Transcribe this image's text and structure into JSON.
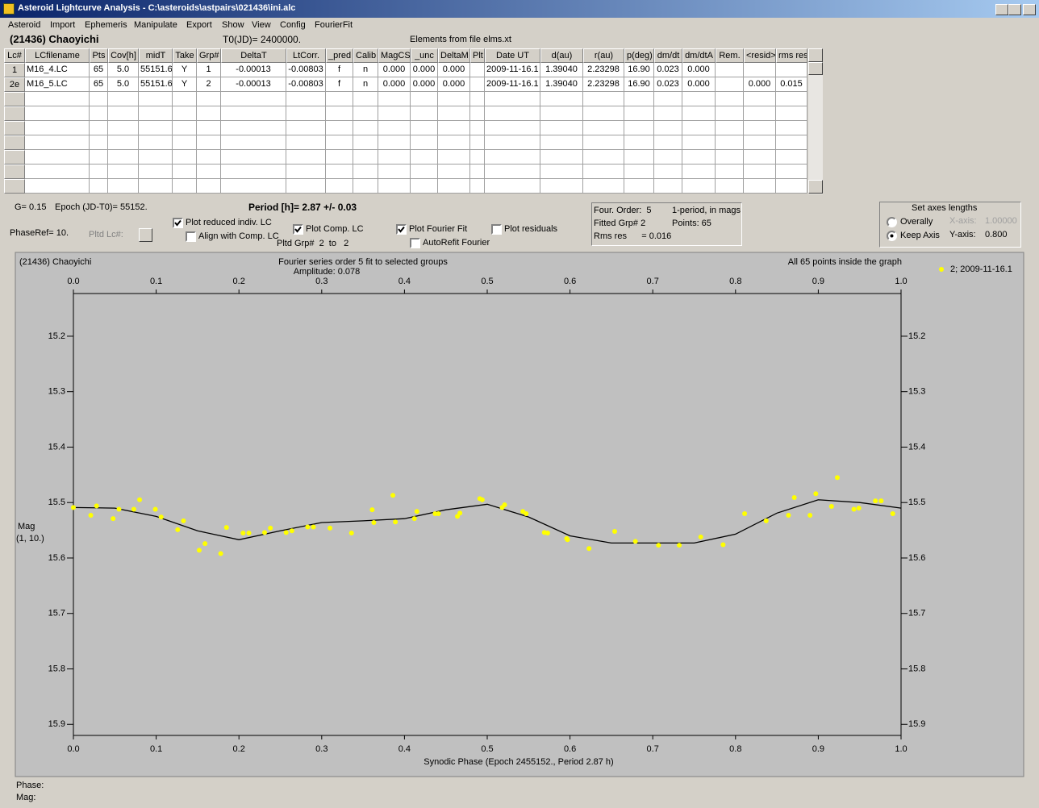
{
  "window": {
    "title": "Asteroid Lightcurve Analysis - C:\\asteroids\\astpairs\\021436\\ini.alc"
  },
  "menu": [
    "Asteroid",
    "Import",
    "Ephemeris",
    "Manipulate",
    "Export",
    "Show",
    "View",
    "Config",
    "FourierFit"
  ],
  "header": {
    "asteroid": "(21436) Chaoyichi",
    "t0": "T0(JD)= 2400000.",
    "elements": "Elements from file elms.xt"
  },
  "table": {
    "columns": [
      "Lc#",
      "LCfilename",
      "Pts",
      "Cov[h]",
      "midT",
      "Take",
      "Grp#",
      "DeltaT",
      "LtCorr.",
      "_pred",
      "Calib",
      "MagCS",
      "_unc",
      "DeltaM",
      "Plt",
      "Date UT",
      "d(au)",
      "r(au)",
      "p(deg)",
      "dm/dt",
      "dm/dtA",
      "Rem.",
      "<resid>",
      "rms res"
    ],
    "rows": [
      [
        "1",
        "M16_4.LC",
        "65",
        "5.0",
        "55151.6",
        "Y",
        "1",
        "-0.00013",
        "-0.00803",
        "f",
        "n",
        "0.000",
        "0.000",
        "0.000",
        null,
        "2009-11-16.1",
        "1.39040",
        "2.23298",
        "16.90",
        "0.023",
        "0.000",
        null,
        null,
        null
      ],
      [
        "2e",
        "M16_5.LC",
        "65",
        "5.0",
        "55151.6",
        "Y",
        "2",
        "-0.00013",
        "-0.00803",
        "f",
        "n",
        "0.000",
        "0.000",
        "0.000",
        null,
        "2009-11-16.1",
        "1.39040",
        "2.23298",
        "16.90",
        "0.023",
        "0.000",
        null,
        "0.000",
        "0.015"
      ]
    ]
  },
  "controls": {
    "g": "G= 0.15",
    "epoch": "Epoch (JD-T0)= 55152.",
    "period": "Period [h]= 2.87 +/- 0.03",
    "phase_ref": "PhaseRef= 10.",
    "pltd_lc": "Pltd Lc#:",
    "checkboxes": [
      {
        "label": "Plot reduced indiv. LC",
        "checked": true
      },
      {
        "label": "Align with Comp. LC",
        "checked": false
      },
      {
        "label": "Plot Comp. LC",
        "checked": true
      },
      {
        "label": "Plot Fourier Fit",
        "checked": true
      },
      {
        "label": "AutoRefit Fourier",
        "checked": false
      },
      {
        "label": "Plot residuals",
        "checked": false
      }
    ],
    "pltd_grp": "Pltd Grp#  2  to   2",
    "fit_info": [
      "Four. Order:  5",
      "1-period, in mags",
      "Fitted Grp# 2",
      "Points: 65",
      "Rms res      = 0.016"
    ],
    "axes_box": {
      "title": "Set axes lengths",
      "options": [
        {
          "label": "Overally",
          "checked": false
        },
        {
          "label": "Keep Axis",
          "checked": true
        }
      ],
      "x_axis": "X-axis:",
      "x_value": "1.00000",
      "y_axis": "Y-axis:",
      "y_value": "0.800"
    }
  },
  "chart_data": {
    "type": "scatter",
    "title": "Fourier series order 5 fit to selected groups",
    "subtitle": "Amplitude: 0.078",
    "annotations": [
      "(21436) Chaoyichi",
      "All 65 points inside the graph"
    ],
    "x_label": "Synodic Phase (Epoch 2455152., Period 2.87 h)",
    "y_label": "Mag",
    "y_label_note": "(1, 10.)",
    "xlim": [
      0,
      1
    ],
    "ylim": [
      15.123,
      15.92
    ],
    "y_inverted": true,
    "xticks": [
      {
        "value": 0,
        "label": "0.0"
      },
      0.1,
      0.2,
      0.3,
      0.4,
      0.5,
      0.6,
      0.7,
      0.8,
      0.9,
      {
        "value": 1,
        "label": "1.0"
      }
    ],
    "yticks": [
      15.2,
      15.3,
      15.4,
      15.5,
      15.6,
      15.7,
      15.8,
      15.9
    ],
    "series": [
      {
        "name": "2; 2009-11-16.1",
        "color": "#ffff00",
        "x": [
          0.0,
          0.021,
          0.028,
          0.048,
          0.055,
          0.073,
          0.08,
          0.099,
          0.106,
          0.126,
          0.133,
          0.152,
          0.159,
          0.178,
          0.185,
          0.205,
          0.212,
          0.231,
          0.238,
          0.257,
          0.264,
          0.283,
          0.29,
          0.31,
          0.336,
          0.361,
          0.363,
          0.386,
          0.389,
          0.412,
          0.415,
          0.437,
          0.441,
          0.464,
          0.467,
          0.491,
          0.494,
          0.518,
          0.521,
          0.543,
          0.547,
          0.569,
          0.573,
          0.596,
          0.597,
          0.623,
          0.654,
          0.679,
          0.707,
          0.732,
          0.758,
          0.785,
          0.811,
          0.837,
          0.864,
          0.871,
          0.89,
          0.897,
          0.916,
          0.923,
          0.943,
          0.949,
          0.969,
          0.976,
          0.99
        ],
        "values": [
          15.509,
          15.523,
          15.506,
          15.529,
          15.512,
          15.512,
          15.495,
          15.512,
          15.526,
          15.549,
          15.533,
          15.586,
          15.574,
          15.592,
          15.545,
          15.555,
          15.555,
          15.554,
          15.546,
          15.554,
          15.551,
          15.544,
          15.544,
          15.546,
          15.555,
          15.513,
          15.536,
          15.487,
          15.535,
          15.529,
          15.516,
          15.52,
          15.52,
          15.525,
          15.519,
          15.493,
          15.495,
          15.509,
          15.504,
          15.516,
          15.52,
          15.554,
          15.555,
          15.565,
          15.567,
          15.583,
          15.552,
          15.57,
          15.577,
          15.577,
          15.562,
          15.576,
          15.52,
          15.533,
          15.523,
          15.491,
          15.523,
          15.484,
          15.507,
          15.455,
          15.512,
          15.51,
          15.497,
          15.497,
          15.52
        ]
      }
    ],
    "fit": {
      "color": "#000000",
      "x": [
        0,
        0.05,
        0.1,
        0.15,
        0.2,
        0.25,
        0.3,
        0.35,
        0.4,
        0.45,
        0.5,
        0.55,
        0.6,
        0.65,
        0.7,
        0.75,
        0.8,
        0.85,
        0.9,
        0.95,
        1
      ],
      "values": [
        15.509,
        15.51,
        15.525,
        15.551,
        15.567,
        15.551,
        15.536,
        15.533,
        15.529,
        15.513,
        15.503,
        15.526,
        15.56,
        15.573,
        15.573,
        15.573,
        15.557,
        15.519,
        15.495,
        15.5,
        15.51
      ]
    }
  },
  "status": [
    "Phase:",
    "Mag:"
  ]
}
